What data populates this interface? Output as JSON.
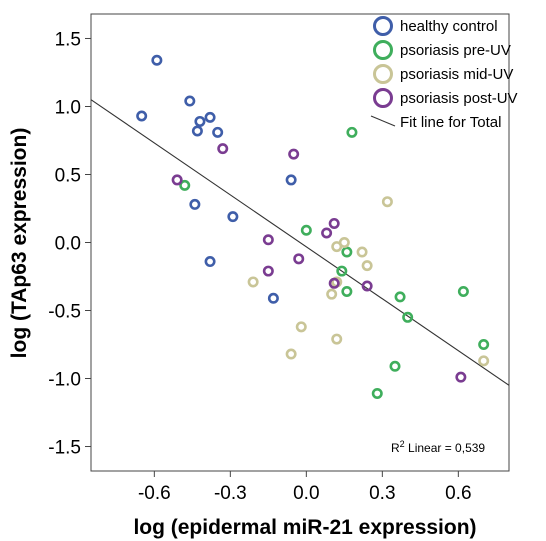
{
  "chart_data": {
    "type": "scatter",
    "xlabel": "log (epidermal miR-21 expression)",
    "ylabel": "log (TAp63 expression)",
    "xlim": [
      -0.85,
      0.8
    ],
    "ylim": [
      -1.68,
      1.68
    ],
    "xticks": [
      -0.6,
      -0.3,
      0.0,
      0.3,
      0.6
    ],
    "xtick_labels": [
      "-0.6",
      "-0.3",
      "0.0",
      "0.3",
      "0.6"
    ],
    "yticks": [
      1.5,
      1.0,
      0.5,
      0.0,
      -0.5,
      -1.0,
      -1.5
    ],
    "ytick_labels": [
      "1.5",
      "1.0",
      "0.5",
      "0.0",
      "-0.5",
      "-1.0",
      "-1.5"
    ],
    "legend_position": "top-right",
    "series": [
      {
        "name": "healthy control",
        "color": "#3f5ea9",
        "points": [
          [
            -0.59,
            1.34
          ],
          [
            -0.65,
            0.93
          ],
          [
            -0.46,
            1.04
          ],
          [
            -0.42,
            0.89
          ],
          [
            -0.38,
            0.92
          ],
          [
            -0.43,
            0.82
          ],
          [
            -0.35,
            0.81
          ],
          [
            -0.06,
            0.46
          ],
          [
            -0.44,
            0.28
          ],
          [
            -0.29,
            0.19
          ],
          [
            -0.38,
            -0.14
          ],
          [
            -0.13,
            -0.41
          ]
        ]
      },
      {
        "name": "psoriasis pre-UV",
        "color": "#3fae5c",
        "points": [
          [
            -0.48,
            0.42
          ],
          [
            0.18,
            0.81
          ],
          [
            0.0,
            0.09
          ],
          [
            0.16,
            -0.07
          ],
          [
            0.14,
            -0.21
          ],
          [
            0.16,
            -0.36
          ],
          [
            0.37,
            -0.4
          ],
          [
            0.4,
            -0.55
          ],
          [
            0.62,
            -0.36
          ],
          [
            0.7,
            -0.75
          ],
          [
            0.35,
            -0.91
          ],
          [
            0.28,
            -1.11
          ]
        ]
      },
      {
        "name": "psoriasis mid-UV",
        "color": "#c9c597",
        "points": [
          [
            0.32,
            0.3
          ],
          [
            0.15,
            0.0
          ],
          [
            0.12,
            -0.03
          ],
          [
            0.22,
            -0.07
          ],
          [
            0.24,
            -0.17
          ],
          [
            0.12,
            -0.29
          ],
          [
            0.1,
            -0.38
          ],
          [
            -0.21,
            -0.29
          ],
          [
            -0.02,
            -0.62
          ],
          [
            0.12,
            -0.71
          ],
          [
            -0.06,
            -0.82
          ],
          [
            0.7,
            -0.87
          ]
        ]
      },
      {
        "name": "psoriasis post-UV",
        "color": "#7a3c91",
        "points": [
          [
            -0.33,
            0.69
          ],
          [
            -0.05,
            0.65
          ],
          [
            -0.51,
            0.46
          ],
          [
            0.11,
            0.14
          ],
          [
            0.08,
            0.07
          ],
          [
            -0.15,
            0.02
          ],
          [
            -0.03,
            -0.12
          ],
          [
            -0.15,
            -0.21
          ],
          [
            0.11,
            -0.3
          ],
          [
            0.24,
            -0.32
          ],
          [
            0.61,
            -0.99
          ]
        ]
      }
    ],
    "fit_line": {
      "name": "Fit line for Total",
      "color": "#333333",
      "x": [
        -0.85,
        0.8
      ],
      "y": [
        1.05,
        -1.05
      ]
    },
    "annotation": {
      "prefix": "R",
      "superscript": "2",
      "suffix": " Linear = 0,539"
    }
  }
}
